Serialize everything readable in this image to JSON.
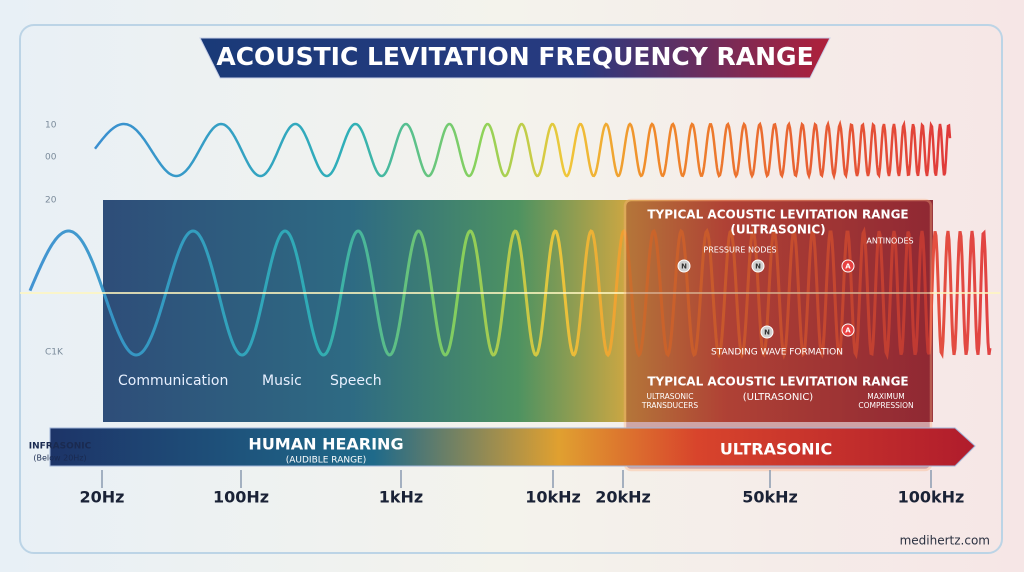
{
  "header": {
    "title": "ACOUSTIC LEVITATION FREQUENCY RANGE"
  },
  "side_labels": [
    "10",
    "00",
    "20",
    "C1K"
  ],
  "audible_panel": {
    "labels": [
      "Communication",
      "Music",
      "Speech"
    ]
  },
  "levitation": {
    "heading": "TYPICAL ACOUSTIC LEVITATION RANGE",
    "heading_sub": "(ULTRASONIC)",
    "pressure_nodes": "PRESSURE NODES",
    "antinodes": "ANTINODES",
    "markers": [
      "N",
      "N",
      "A",
      "N",
      "A"
    ],
    "standing_wave": "STANDING WAVE FORMATION",
    "footer_title": "TYPICAL ACOUSTIC LEVITATION RANGE",
    "footer_sub": "(ULTRASONIC)",
    "transducers": "ULTRASONIC TRANSDUCERS",
    "compression": "MAXIMUM COMPRESSION"
  },
  "bands": {
    "infrasonic": "INFRASONIC",
    "infrasonic_sub": "(Below 20Hz)",
    "human": "HUMAN HEARING",
    "human_sub": "(AUDIBLE RANGE)",
    "ultrasonic": "ULTRASONIC"
  },
  "scale": [
    "20Hz",
    "100Hz",
    "1kHz",
    "10kHz",
    "20kHz",
    "50kHz",
    "100kHz"
  ],
  "footer": {
    "site": "medihertz.com"
  }
}
